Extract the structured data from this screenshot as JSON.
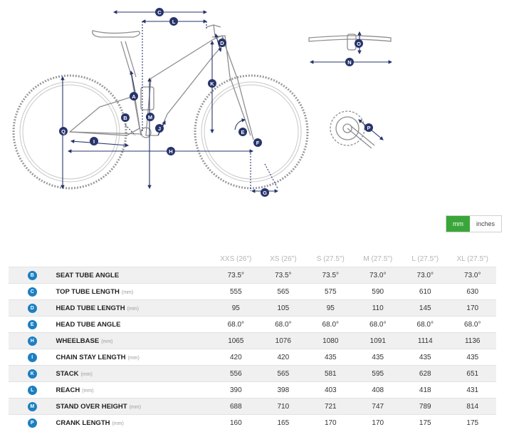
{
  "diagram": {
    "letters": [
      "A",
      "B",
      "C",
      "D",
      "E",
      "F",
      "G",
      "H",
      "I",
      "J",
      "K",
      "L",
      "M",
      "N",
      "O",
      "P",
      "Q"
    ]
  },
  "units": {
    "mm": "mm",
    "inches": "inches"
  },
  "table": {
    "sizes": [
      "XXS (26\")",
      "XS (26\")",
      "S (27.5\")",
      "M (27.5\")",
      "L (27.5\")",
      "XL (27.5\")"
    ],
    "rows": [
      {
        "letter": "B",
        "label": "SEAT TUBE ANGLE",
        "unit": "",
        "values": [
          "73.5°",
          "73.5°",
          "73.5°",
          "73.0°",
          "73.0°",
          "73.0°"
        ]
      },
      {
        "letter": "C",
        "label": "TOP TUBE LENGTH",
        "unit": "(mm)",
        "values": [
          "555",
          "565",
          "575",
          "590",
          "610",
          "630"
        ]
      },
      {
        "letter": "D",
        "label": "HEAD TUBE LENGTH",
        "unit": "(mm)",
        "values": [
          "95",
          "105",
          "95",
          "110",
          "145",
          "170"
        ]
      },
      {
        "letter": "E",
        "label": "HEAD TUBE ANGLE",
        "unit": "",
        "values": [
          "68.0°",
          "68.0°",
          "68.0°",
          "68.0°",
          "68.0°",
          "68.0°"
        ]
      },
      {
        "letter": "H",
        "label": "WHEELBASE",
        "unit": "(mm)",
        "values": [
          "1065",
          "1076",
          "1080",
          "1091",
          "1114",
          "1136"
        ]
      },
      {
        "letter": "I",
        "label": "CHAIN STAY LENGTH",
        "unit": "(mm)",
        "values": [
          "420",
          "420",
          "435",
          "435",
          "435",
          "435"
        ]
      },
      {
        "letter": "K",
        "label": "STACK",
        "unit": "(mm)",
        "values": [
          "556",
          "565",
          "581",
          "595",
          "628",
          "651"
        ]
      },
      {
        "letter": "L",
        "label": "REACH",
        "unit": "(mm)",
        "values": [
          "390",
          "398",
          "403",
          "408",
          "418",
          "431"
        ]
      },
      {
        "letter": "M",
        "label": "STAND OVER HEIGHT",
        "unit": "(mm)",
        "values": [
          "688",
          "710",
          "721",
          "747",
          "789",
          "814"
        ]
      },
      {
        "letter": "P",
        "label": "CRANK LENGTH",
        "unit": "(mm)",
        "values": [
          "160",
          "165",
          "170",
          "170",
          "175",
          "175"
        ]
      }
    ]
  }
}
